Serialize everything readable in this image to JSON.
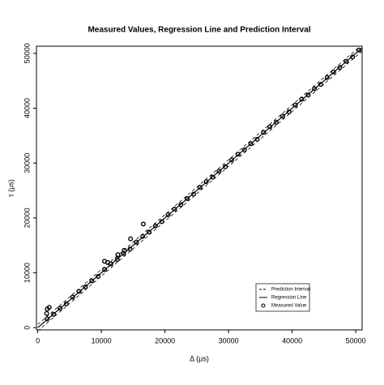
{
  "chart_data": {
    "type": "scatter",
    "title": "Measured Values, Regression Line and Prediction Interval",
    "xlabel": "Δ (μs)",
    "ylabel": "τ (μs)",
    "xlim": [
      -200,
      51000
    ],
    "ylim": [
      -400,
      51300
    ],
    "xticks": [
      0,
      10000,
      20000,
      30000,
      40000,
      50000
    ],
    "yticks": [
      0,
      10000,
      20000,
      30000,
      40000,
      50000
    ],
    "legend": "bottomright",
    "series": [
      {
        "name": "Prediction Interval",
        "type": "line",
        "dash": "dashed",
        "color": "#000000",
        "x": [
          0,
          51000
        ],
        "values": [
          600,
          51600
        ],
        "lower_values": [
          -600,
          50400
        ]
      },
      {
        "name": "Regression Line",
        "type": "line",
        "dash": "solid",
        "color": "#000000",
        "x": [
          0,
          51000
        ],
        "values": [
          0,
          51000
        ]
      },
      {
        "name": "Measured Value",
        "type": "scatter",
        "color": "#000000",
        "x": [
          1500,
          2500,
          3500,
          4500,
          5500,
          6500,
          7500,
          8500,
          9500,
          10500,
          11500,
          12500,
          13500,
          14500,
          15500,
          16500,
          17500,
          18500,
          19500,
          20500,
          21500,
          22500,
          23500,
          24500,
          25500,
          26500,
          27500,
          28500,
          29500,
          30500,
          31500,
          32500,
          33500,
          34500,
          35500,
          36500,
          37500,
          38500,
          39500,
          40500,
          41500,
          42500,
          43500,
          44500,
          45500,
          46500,
          47500,
          48500,
          49500,
          50500,
          1500,
          1800,
          1400,
          10500,
          12600,
          14600,
          16600,
          13600,
          11000
        ],
        "values": [
          1620,
          2420,
          3540,
          4340,
          5590,
          6620,
          7420,
          8540,
          9340,
          10590,
          11620,
          12420,
          13540,
          14340,
          15590,
          16620,
          17420,
          18540,
          19340,
          20590,
          21620,
          22420,
          23540,
          24340,
          25590,
          26620,
          27420,
          28540,
          29340,
          30590,
          31620,
          32420,
          33540,
          34340,
          35590,
          36620,
          37420,
          38540,
          39340,
          40590,
          41620,
          42420,
          43540,
          44340,
          45590,
          46620,
          47420,
          48540,
          49340,
          50590,
          3400,
          3700,
          2600,
          12100,
          13300,
          16200,
          18900,
          14100,
          11900
        ]
      }
    ]
  }
}
